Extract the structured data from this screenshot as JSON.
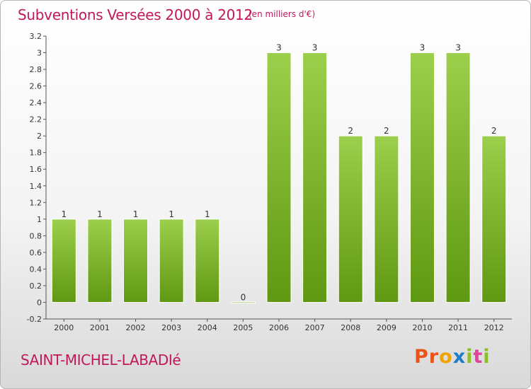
{
  "header": {
    "title": "Subventions Versées 2000 à 2012",
    "unit": "(en milliers d'€)"
  },
  "footer": {
    "commune": "SAINT-MICHEL-LABADIé",
    "logo_letters": [
      "P",
      "r",
      "o",
      "x",
      "i",
      "t",
      "i"
    ]
  },
  "colors": {
    "title": "#c2185b",
    "bar_light": "#9ccf4c",
    "bar_dark": "#5f9812",
    "logo": [
      "#e8541a",
      "#e8541a",
      "#f0a400",
      "#1f7ec8",
      "#8cbf26",
      "#e04399",
      "#8cbf26"
    ]
  },
  "chart_data": {
    "type": "bar",
    "title": "Subventions Versées 2000 à 2012",
    "subtitle": "(en milliers d'€)",
    "categories": [
      "2000",
      "2001",
      "2002",
      "2003",
      "2004",
      "2005",
      "2006",
      "2007",
      "2008",
      "2009",
      "2010",
      "2011",
      "2012"
    ],
    "values": [
      1,
      1,
      1,
      1,
      1,
      0,
      3,
      3,
      2,
      2,
      3,
      3,
      2
    ],
    "value_labels": [
      "1",
      "1",
      "1",
      "1",
      "1",
      "0",
      "3",
      "3",
      "2",
      "2",
      "3",
      "3",
      "2"
    ],
    "ylim": [
      -0.2,
      3.2
    ],
    "yticks": [
      "-0.2",
      "0",
      "0.2",
      "0.4",
      "0.6",
      "0.8",
      "1",
      "1.2",
      "1.4",
      "1.6",
      "1.8",
      "2",
      "2.2",
      "2.4",
      "2.6",
      "2.8",
      "3",
      "3.2"
    ],
    "ytick_values": [
      -0.2,
      0,
      0.2,
      0.4,
      0.6,
      0.8,
      1,
      1.2,
      1.4,
      1.6,
      1.8,
      2,
      2.2,
      2.4,
      2.6,
      2.8,
      3,
      3.2
    ],
    "grid": false,
    "legend": "none"
  }
}
